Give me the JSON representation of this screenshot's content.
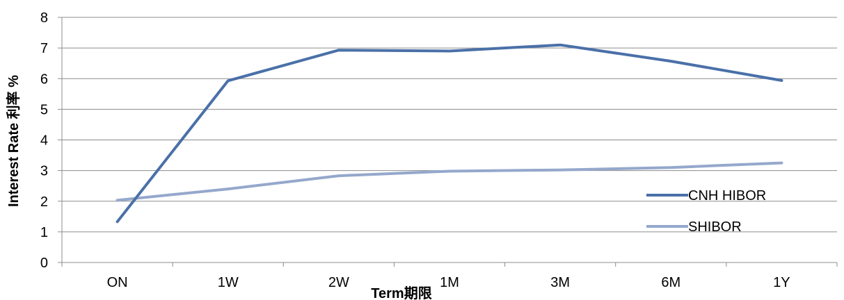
{
  "chart_data": {
    "type": "line",
    "xlabel": "Term期限",
    "ylabel": "Interest Rate 利率 %",
    "categories": [
      "ON",
      "1W",
      "2W",
      "1M",
      "3M",
      "6M",
      "1Y"
    ],
    "ylim": [
      0,
      8
    ],
    "yticks": [
      "0",
      "1",
      "2",
      "3",
      "4",
      "5",
      "6",
      "7",
      "8"
    ],
    "grid": true,
    "legend_position": "right",
    "series": [
      {
        "name": "CNH HIBOR",
        "color": "#4A70A8",
        "values": [
          1.33,
          5.93,
          6.93,
          6.9,
          7.1,
          6.57,
          5.94
        ]
      },
      {
        "name": "SHIBOR",
        "color": "#95A8CC",
        "values": [
          2.03,
          2.4,
          2.83,
          2.98,
          3.02,
          3.1,
          3.25
        ]
      }
    ]
  }
}
